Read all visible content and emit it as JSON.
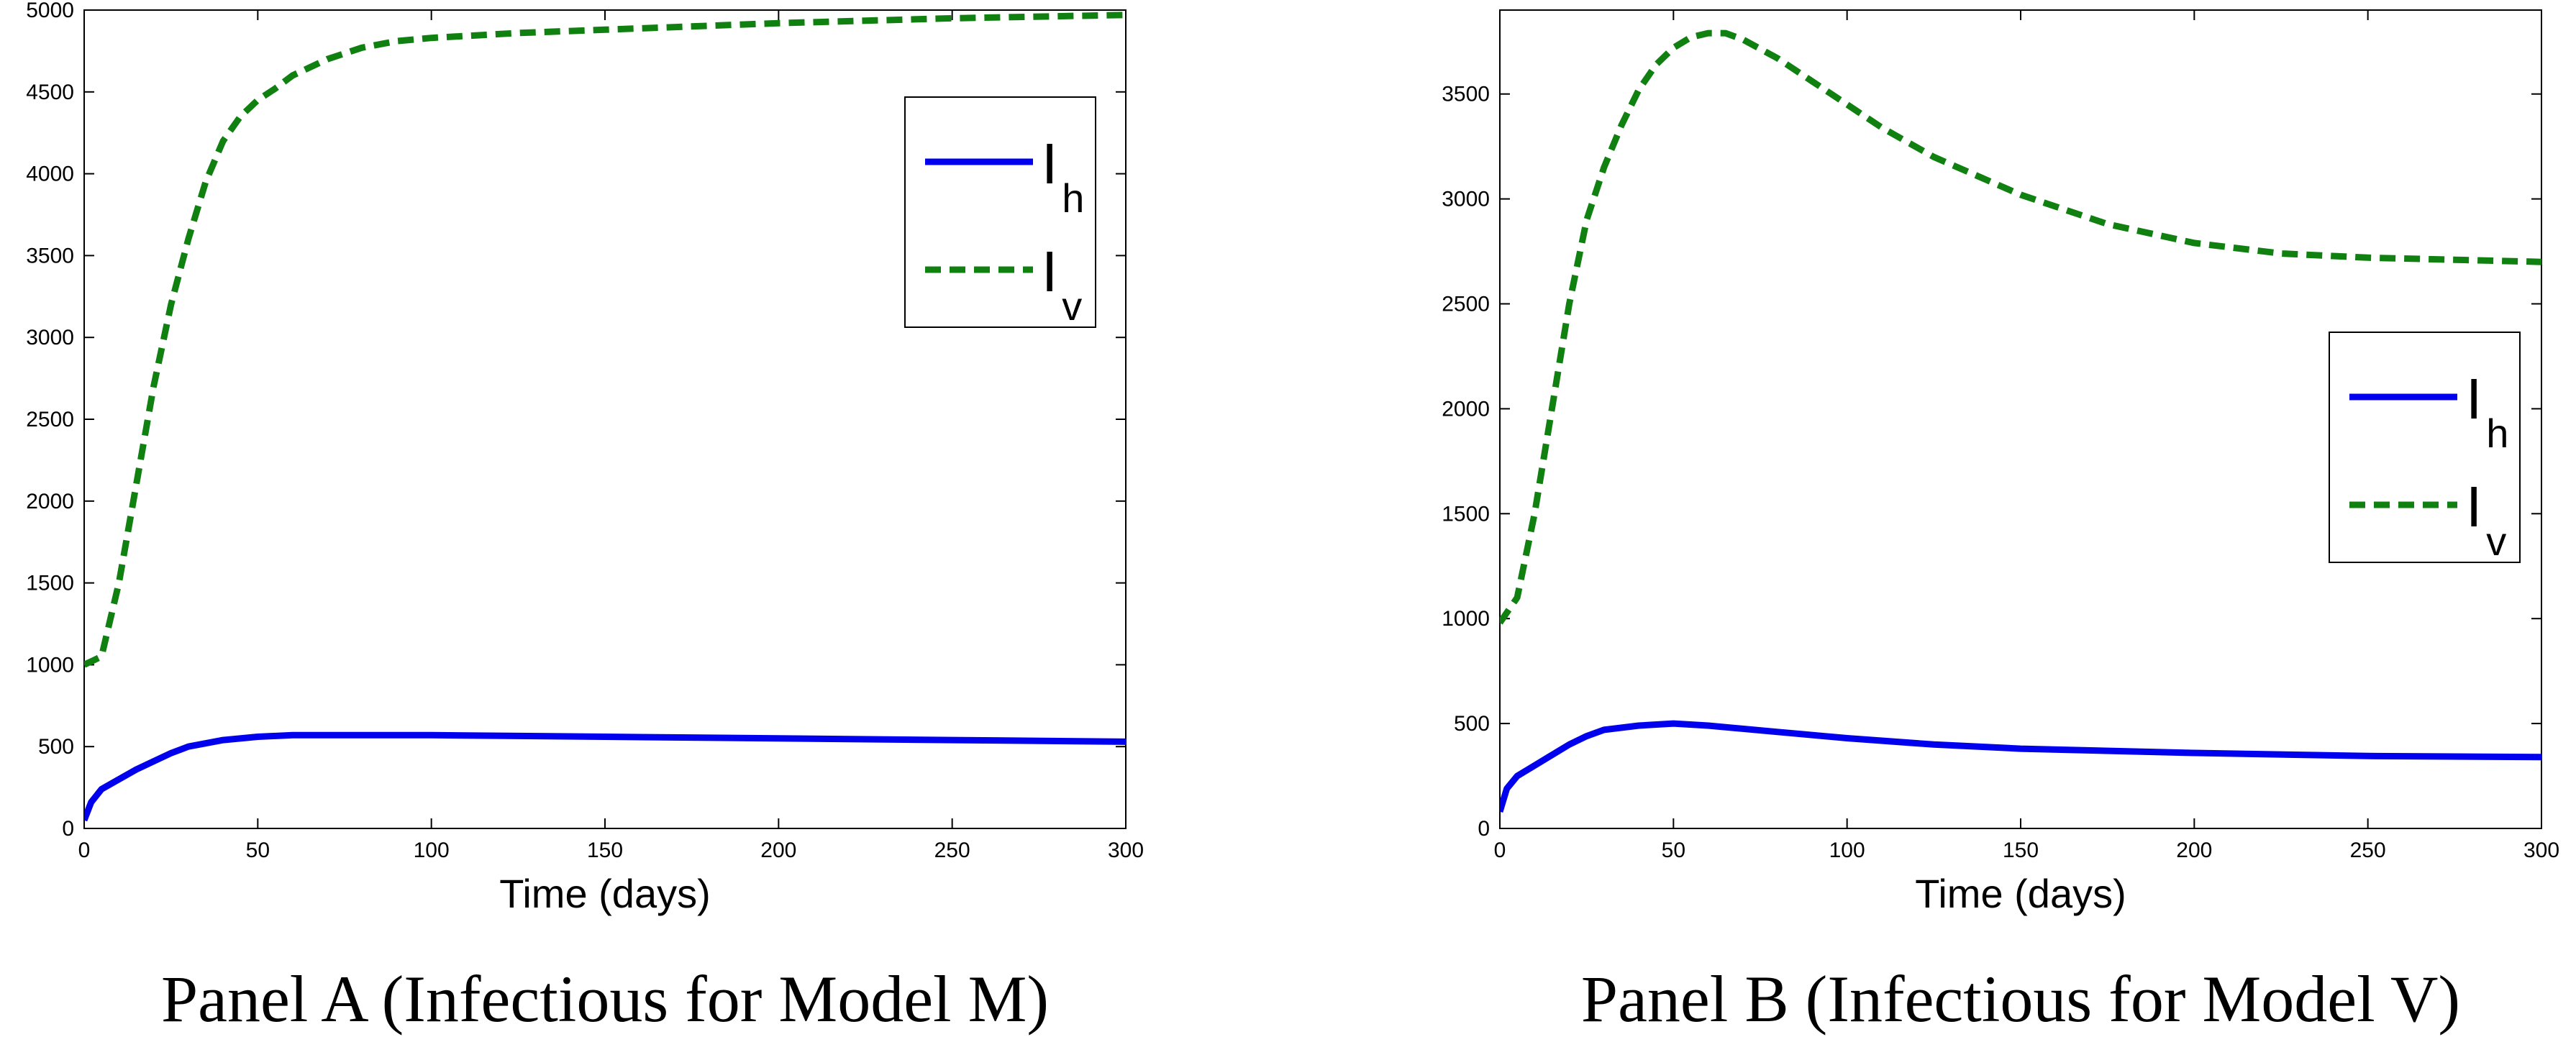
{
  "chart_data": [
    {
      "type": "line",
      "caption": "Panel A (Infectious for Model M)",
      "xlabel": "Time (days)",
      "ylabel": "",
      "xlim": [
        0,
        300
      ],
      "ylim": [
        0,
        5000
      ],
      "xticks": [
        0,
        50,
        100,
        150,
        200,
        250,
        300
      ],
      "yticks": [
        0,
        500,
        1000,
        1500,
        2000,
        2500,
        3000,
        3500,
        4000,
        4500,
        5000
      ],
      "legend_position": "top-right",
      "grid": false,
      "series": [
        {
          "name": "I",
          "name_sub": "h",
          "style": "solid",
          "color": "#0000ee",
          "x": [
            0,
            2,
            5,
            10,
            15,
            20,
            25,
            30,
            40,
            50,
            60,
            80,
            100,
            125,
            150,
            200,
            250,
            300
          ],
          "y": [
            50,
            160,
            240,
            300,
            360,
            410,
            460,
            500,
            540,
            560,
            570,
            570,
            570,
            565,
            560,
            550,
            540,
            530
          ]
        },
        {
          "name": "I",
          "name_sub": "v",
          "style": "dashed",
          "color": "#108010",
          "x": [
            0,
            5,
            10,
            15,
            20,
            25,
            30,
            35,
            40,
            45,
            50,
            55,
            60,
            70,
            80,
            90,
            100,
            125,
            150,
            200,
            250,
            300
          ],
          "y": [
            1000,
            1050,
            1500,
            2100,
            2700,
            3200,
            3600,
            3950,
            4200,
            4350,
            4450,
            4520,
            4600,
            4700,
            4770,
            4810,
            4830,
            4860,
            4880,
            4920,
            4950,
            4970
          ]
        }
      ]
    },
    {
      "type": "line",
      "caption": "Panel B (Infectious for Model V)",
      "xlabel": "Time (days)",
      "ylabel": "",
      "xlim": [
        0,
        300
      ],
      "ylim": [
        0,
        3900
      ],
      "xticks": [
        0,
        50,
        100,
        150,
        200,
        250,
        300
      ],
      "yticks": [
        0,
        500,
        1000,
        1500,
        2000,
        2500,
        3000,
        3500
      ],
      "legend_position": "center-right",
      "grid": false,
      "series": [
        {
          "name": "I",
          "name_sub": "h",
          "style": "solid",
          "color": "#0000ee",
          "x": [
            0,
            2,
            5,
            10,
            15,
            20,
            25,
            30,
            40,
            50,
            60,
            80,
            100,
            125,
            150,
            200,
            250,
            300
          ],
          "y": [
            80,
            190,
            250,
            300,
            350,
            400,
            440,
            470,
            490,
            500,
            490,
            460,
            430,
            400,
            380,
            360,
            345,
            340
          ]
        },
        {
          "name": "I",
          "name_sub": "v",
          "style": "dashed",
          "color": "#108010",
          "x": [
            0,
            5,
            10,
            15,
            20,
            25,
            30,
            35,
            40,
            45,
            50,
            55,
            60,
            65,
            70,
            80,
            90,
            100,
            110,
            125,
            150,
            175,
            200,
            225,
            250,
            275,
            300
          ],
          "y": [
            980,
            1100,
            1500,
            2000,
            2500,
            2900,
            3150,
            3350,
            3520,
            3640,
            3720,
            3770,
            3790,
            3790,
            3760,
            3670,
            3560,
            3450,
            3340,
            3200,
            3020,
            2880,
            2790,
            2740,
            2720,
            2710,
            2700
          ]
        }
      ]
    }
  ]
}
